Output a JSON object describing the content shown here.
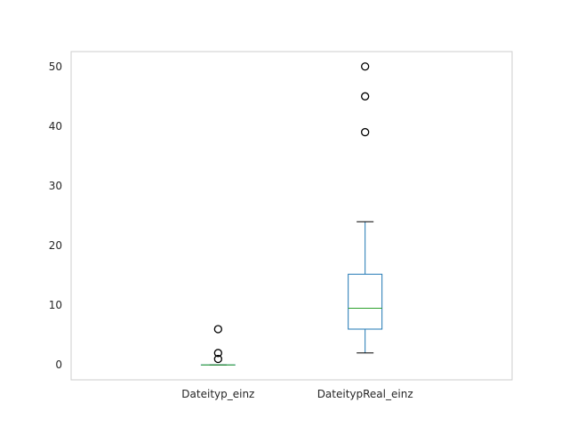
{
  "chart_data": {
    "type": "box",
    "title": "",
    "xlabel": "",
    "ylabel": "",
    "ylim": [
      -2.5,
      52.5
    ],
    "yticks": [
      0,
      10,
      20,
      30,
      40,
      50
    ],
    "grid": false,
    "categories": [
      "Dateityp_einz",
      "DateitypReal_einz"
    ],
    "boxes": [
      {
        "category": "Dateityp_einz",
        "whisker_low": 0,
        "q1": 0,
        "median": 0,
        "q3": 0,
        "whisker_high": 0,
        "outliers": [
          1,
          2,
          6
        ]
      },
      {
        "category": "DateitypReal_einz",
        "whisker_low": 2,
        "q1": 6,
        "median": 9.5,
        "q3": 15.2,
        "whisker_high": 24,
        "outliers": [
          39,
          45,
          50
        ]
      }
    ],
    "colors": {
      "box": "#1f77b4",
      "median": "#2ca02c",
      "whisker_cap": "#000000",
      "frame": "#cccccc"
    }
  }
}
